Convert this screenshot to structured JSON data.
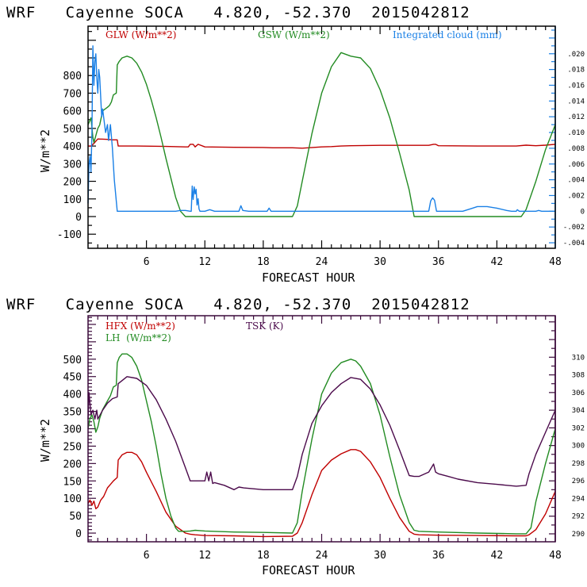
{
  "chart_data": [
    {
      "type": "line",
      "title": "WRF   Cayenne SOCA   4.820, -52.370  2015042812",
      "xlabel": "FORECAST HOUR",
      "ylabel": "W/m**2",
      "xlim": [
        0,
        48
      ],
      "ylim": [
        -180,
        1080
      ],
      "y2lim": [
        -0.0047,
        0.0235
      ],
      "xticks": [
        6,
        12,
        18,
        24,
        30,
        36,
        42,
        48
      ],
      "xtick_labels": [
        "6",
        "12",
        "18",
        "24",
        "30",
        "36",
        "42",
        "48"
      ],
      "yticks": [
        -100,
        0,
        100,
        200,
        300,
        400,
        500,
        600,
        700,
        800
      ],
      "ytick_labels": [
        "-100",
        "0",
        "100",
        "200",
        "300",
        "400",
        "500",
        "600",
        "700",
        "800"
      ],
      "y2ticks": [
        -0.004,
        -0.002,
        0,
        0.002,
        0.004,
        0.006,
        0.008,
        0.01,
        0.012,
        0.014,
        0.016,
        0.018,
        0.02
      ],
      "y2tick_labels": [
        "-.004",
        "-.002",
        "0",
        ".002",
        ".004",
        ".006",
        ".008",
        ".010",
        ".012",
        ".014",
        ".016",
        ".018",
        ".020"
      ],
      "legend": [
        "GLW (W/m**2)",
        "GSW (W/m**2)",
        "Integrated cloud (mm)"
      ],
      "legend_placement": "top",
      "series": [
        {
          "name": "GLW (W/m**2)",
          "axis": "left",
          "color": "#c00000",
          "x": [
            0,
            0.3,
            0.6,
            1.0,
            2.0,
            2.5,
            3.0,
            3.1,
            5,
            8,
            10,
            10.3,
            10.5,
            10.8,
            11,
            11.3,
            12,
            15,
            18,
            19,
            21,
            22,
            24,
            25,
            26,
            27,
            30,
            32,
            35,
            35.5,
            35.7,
            36,
            40,
            44,
            45,
            46,
            47,
            48
          ],
          "y": [
            400,
            400,
            415,
            440,
            438,
            435,
            435,
            400,
            400,
            398,
            395,
            395,
            410,
            410,
            395,
            410,
            395,
            393,
            392,
            390,
            390,
            388,
            395,
            397,
            400,
            402,
            404,
            404,
            404,
            410,
            410,
            402,
            400,
            400,
            405,
            402,
            405,
            410
          ]
        },
        {
          "name": "GSW (W/m**2)",
          "axis": "left",
          "color": "#228b22",
          "x": [
            0,
            0.3,
            0.5,
            0.6,
            1.0,
            1.2,
            1.5,
            2.0,
            2.2,
            2.4,
            2.6,
            2.9,
            3.0,
            3.2,
            3.5,
            4.0,
            4.5,
            5.0,
            5.5,
            6.0,
            6.5,
            7.0,
            7.5,
            8.0,
            8.5,
            9.0,
            9.5,
            10.0,
            10.5,
            21.0,
            21.5,
            22.0,
            23.0,
            24.0,
            25.0,
            26.0,
            27.0,
            27.5,
            28.0,
            29.0,
            30.0,
            31.0,
            32.0,
            33.0,
            33.5,
            44.5,
            45.0,
            46.0,
            47.0,
            48.0
          ],
          "y": [
            520,
            560,
            450,
            420,
            500,
            520,
            600,
            620,
            630,
            650,
            690,
            700,
            860,
            880,
            900,
            910,
            900,
            870,
            820,
            750,
            660,
            560,
            450,
            330,
            220,
            110,
            30,
            0,
            0,
            0,
            60,
            200,
            470,
            700,
            850,
            930,
            910,
            905,
            900,
            840,
            720,
            560,
            360,
            150,
            0,
            0,
            40,
            200,
            380,
            520
          ]
        },
        {
          "name": "Integrated cloud (mm)",
          "axis": "right",
          "color": "#1a80e6",
          "x": [
            0,
            0.1,
            0.2,
            0.3,
            0.4,
            0.5,
            0.6,
            0.7,
            0.8,
            0.9,
            1.0,
            1.1,
            1.2,
            1.4,
            1.5,
            1.6,
            1.8,
            2.0,
            2.1,
            2.3,
            2.5,
            2.7,
            3.0,
            3.05,
            9.0,
            9.5,
            10.0,
            10.5,
            10.6,
            10.7,
            10.8,
            10.9,
            11.0,
            11.1,
            11.2,
            11.3,
            11.4,
            11.5,
            12.0,
            12.5,
            13.0,
            15.5,
            15.7,
            15.9,
            16.5,
            18.4,
            18.6,
            18.8,
            35.0,
            35.2,
            35.4,
            35.6,
            35.8,
            36.0,
            38.5,
            39.5,
            40.0,
            41.0,
            42.0,
            43.0,
            43.5,
            44.0,
            44.1,
            44.3,
            46.0,
            46.3,
            46.6,
            48.0
          ],
          "y": [
            0.001,
            0.006,
            0.007,
            0.005,
            0.01,
            0.021,
            0.016,
            0.019,
            0.02,
            0.017,
            0.015,
            0.018,
            0.017,
            0.012,
            0.013,
            0.012,
            0.01,
            0.011,
            0.009,
            0.011,
            0.008,
            0.004,
            0.0,
            0.0,
            0.0,
            0.0001,
            0.0001,
            0.0,
            0.0,
            0.0032,
            0.0015,
            0.0031,
            0.0022,
            0.0028,
            0.0008,
            0.0016,
            0.0003,
            0.0,
            0.0,
            0.0002,
            0.0,
            0.0,
            0.0007,
            0.0001,
            0.0,
            0.0,
            0.0004,
            0.0,
            0.0,
            0.0013,
            0.0017,
            0.0014,
            0.0,
            0.0,
            0.0,
            0.0004,
            0.0006,
            0.0006,
            0.0004,
            0.0001,
            0.0,
            0.0,
            0.0002,
            0.0,
            0.0,
            0.0001,
            0.0,
            0.0
          ]
        }
      ]
    },
    {
      "type": "line",
      "title": "WRF   Cayenne SOCA   4.820, -52.370  2015042812",
      "xlabel": "FORECAST HOUR",
      "ylabel": "W/m**2",
      "xlim": [
        0,
        48
      ],
      "ylim": [
        -25,
        625
      ],
      "y2lim": [
        289.1,
        314.7
      ],
      "xticks": [
        6,
        12,
        18,
        24,
        30,
        36,
        42,
        48
      ],
      "xtick_labels": [
        "6",
        "12",
        "18",
        "24",
        "30",
        "36",
        "42",
        "48"
      ],
      "yticks": [
        0,
        50,
        100,
        150,
        200,
        250,
        300,
        350,
        400,
        450,
        500
      ],
      "ytick_labels": [
        "0",
        "50",
        "100",
        "150",
        "200",
        "250",
        "300",
        "350",
        "400",
        "450",
        "500"
      ],
      "y2ticks": [
        290,
        292,
        294,
        296,
        298,
        300,
        302,
        304,
        306,
        308,
        310
      ],
      "y2tick_labels": [
        "290",
        "292",
        "294",
        "296",
        "298",
        "300",
        "302",
        "304",
        "306",
        "308",
        "310"
      ],
      "legend": [
        "HFX (W/m**2)",
        "LH  (W/m**2)",
        "TSK (K)"
      ],
      "legend_placement": "top-left",
      "series": [
        {
          "name": "HFX (W/m**2)",
          "axis": "left",
          "color": "#c00000",
          "x": [
            0,
            0.2,
            0.4,
            0.6,
            0.8,
            1.0,
            1.3,
            1.6,
            2.0,
            2.3,
            2.6,
            3.0,
            3.1,
            3.5,
            4.0,
            4.5,
            5.0,
            5.5,
            6.0,
            7.0,
            8.0,
            9.0,
            10.0,
            10.5,
            11.0,
            12.0,
            15.0,
            18.0,
            21.0,
            21.5,
            22.0,
            23.0,
            24.0,
            25.0,
            26.0,
            27.0,
            27.5,
            28.0,
            29.0,
            30.0,
            31.0,
            32.0,
            33.0,
            33.5,
            34.0,
            36.0,
            40.0,
            44.0,
            45.0,
            45.3,
            46.0,
            47.0,
            48.0
          ],
          "y": [
            85,
            95,
            80,
            92,
            70,
            75,
            95,
            105,
            130,
            140,
            150,
            160,
            210,
            225,
            232,
            232,
            225,
            205,
            175,
            120,
            60,
            20,
            0,
            -3,
            -5,
            -7,
            -8,
            -10,
            -9,
            0,
            30,
            110,
            180,
            210,
            228,
            240,
            240,
            235,
            205,
            160,
            100,
            45,
            5,
            -3,
            -5,
            -6,
            -7,
            -8,
            -8,
            -5,
            10,
            55,
            120
          ]
        },
        {
          "name": "LH  (W/m**2)",
          "axis": "left",
          "color": "#228b22",
          "x": [
            0,
            0.2,
            0.4,
            0.6,
            0.8,
            1.0,
            1.2,
            1.5,
            2.0,
            2.3,
            2.6,
            2.9,
            3.0,
            3.2,
            3.5,
            4.0,
            4.5,
            5.0,
            5.5,
            6.0,
            6.5,
            7.0,
            7.5,
            8.0,
            8.5,
            9.0,
            9.3,
            10.0,
            10.5,
            11.0,
            12.0,
            15.0,
            18.0,
            21.0,
            21.5,
            22.0,
            23.0,
            24.0,
            25.0,
            26.0,
            27.0,
            27.5,
            28.0,
            29.0,
            30.0,
            31.0,
            32.0,
            33.0,
            33.5,
            34.0,
            36.0,
            40.0,
            44.0,
            45.0,
            45.5,
            46.0,
            47.0,
            48.0
          ],
          "y": [
            300,
            330,
            340,
            320,
            290,
            305,
            330,
            355,
            380,
            395,
            420,
            425,
            490,
            505,
            515,
            515,
            505,
            480,
            440,
            380,
            320,
            250,
            170,
            100,
            50,
            15,
            5,
            5,
            6,
            8,
            6,
            3,
            2,
            0,
            30,
            120,
            270,
            400,
            460,
            490,
            500,
            495,
            480,
            430,
            340,
            220,
            110,
            30,
            8,
            5,
            3,
            0,
            -2,
            -2,
            15,
            90,
            200,
            300
          ]
        },
        {
          "name": "TSK (K)",
          "axis": "right",
          "color": "#4b0a4b",
          "x": [
            0,
            0.1,
            0.3,
            0.5,
            0.7,
            0.9,
            1.0,
            1.5,
            2.0,
            2.5,
            3.0,
            3.1,
            4.0,
            5.0,
            6.0,
            7.0,
            8.0,
            9.0,
            10.0,
            10.5,
            11.0,
            12.0,
            12.2,
            12.4,
            12.6,
            12.8,
            13.0,
            14.0,
            15.0,
            15.5,
            16.0,
            17.0,
            18.0,
            20.0,
            21.0,
            21.5,
            22.0,
            23.0,
            24.0,
            25.0,
            26.0,
            27.0,
            28.0,
            29.0,
            30.0,
            31.0,
            32.0,
            33.0,
            33.5,
            34.0,
            35.0,
            35.5,
            35.7,
            36.0,
            37.0,
            38.0,
            40.0,
            42.0,
            44.0,
            45.0,
            45.3,
            46.0,
            47.0,
            48.0
          ],
          "y": [
            303,
            306,
            303.5,
            304,
            303,
            304,
            303,
            304,
            304.8,
            305.3,
            305.5,
            307,
            307.8,
            307.6,
            306.8,
            305.2,
            303,
            300.5,
            297.5,
            296,
            296,
            296,
            297,
            296,
            297,
            295.7,
            295.8,
            295.5,
            295,
            295.3,
            295.2,
            295.1,
            295,
            295,
            295,
            296.5,
            299,
            302.5,
            304.5,
            306,
            307,
            307.7,
            307.5,
            306.4,
            304.6,
            302.3,
            299.5,
            296.6,
            296.5,
            296.5,
            297,
            297.9,
            297,
            296.8,
            296.5,
            296.2,
            295.8,
            295.6,
            295.4,
            295.5,
            296.8,
            299,
            301.5,
            304
          ]
        }
      ]
    }
  ]
}
